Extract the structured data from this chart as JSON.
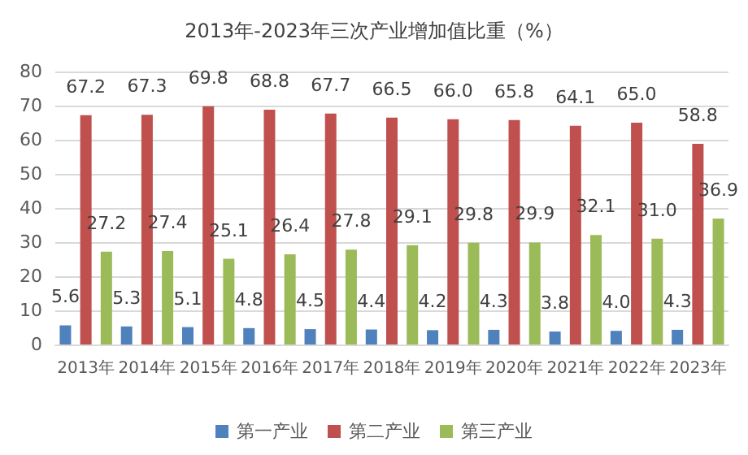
{
  "chart_data": {
    "type": "bar",
    "title": "2013年-2023年三次产业增加值比重（%）",
    "categories": [
      "2013年",
      "2014年",
      "2015年",
      "2016年",
      "2017年",
      "2018年",
      "2019年",
      "2020年",
      "2021年",
      "2022年",
      "2023年"
    ],
    "series": [
      {
        "name": "第一产业",
        "color": "#4f81bd",
        "values": [
          5.6,
          5.3,
          5.1,
          4.8,
          4.5,
          4.4,
          4.2,
          4.3,
          3.8,
          4.0,
          4.3
        ],
        "value_labels": [
          "5.6",
          "5.3",
          "5.1",
          "4.8",
          "4.5",
          "4.4",
          "4.2",
          "4.3",
          "3.8",
          "4.0",
          "4.3"
        ]
      },
      {
        "name": "第二产业",
        "color": "#c0504d",
        "values": [
          67.2,
          67.3,
          69.8,
          68.8,
          67.7,
          66.5,
          66.0,
          65.8,
          64.1,
          65.0,
          58.8
        ],
        "value_labels": [
          "67.2",
          "67.3",
          "69.8",
          "68.8",
          "67.7",
          "66.5",
          "66.0",
          "65.8",
          "64.1",
          "65.0",
          "58.8"
        ]
      },
      {
        "name": "第三产业",
        "color": "#9bbb59",
        "values": [
          27.2,
          27.4,
          25.1,
          26.4,
          27.8,
          29.1,
          29.8,
          29.9,
          32.1,
          31.0,
          36.9
        ],
        "value_labels": [
          "27.2",
          "27.4",
          "25.1",
          "26.4",
          "27.8",
          "29.1",
          "29.8",
          "29.9",
          "32.1",
          "31.0",
          "36.9"
        ]
      }
    ],
    "ylim": [
      0,
      80
    ],
    "yticks": [
      0,
      10,
      20,
      30,
      40,
      50,
      60,
      70,
      80
    ],
    "grid": "y",
    "legend": "bottom"
  }
}
